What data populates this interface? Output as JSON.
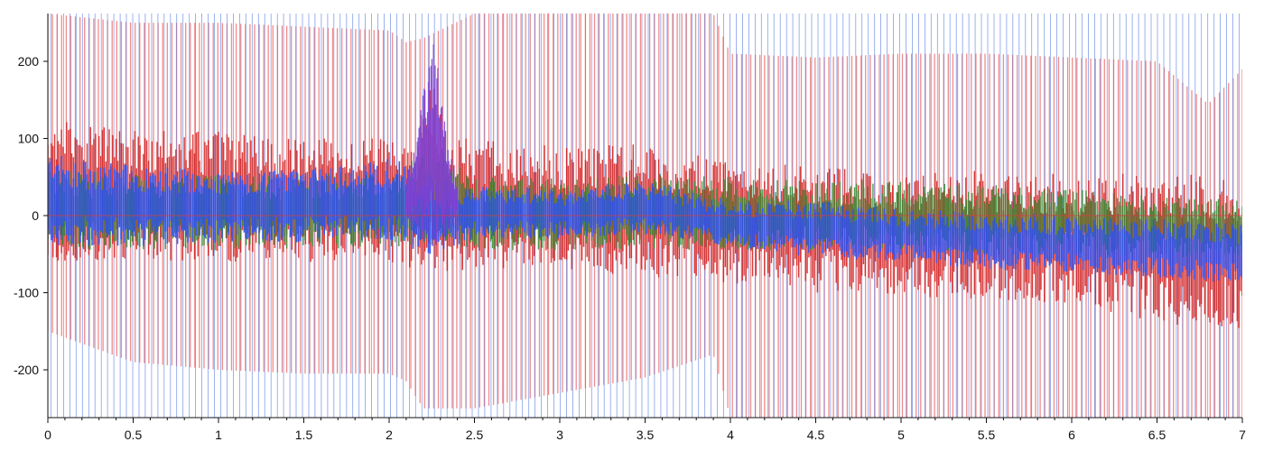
{
  "chart_data": {
    "type": "line",
    "title": "",
    "xlabel": "",
    "ylabel": "",
    "xlim": [
      0,
      7
    ],
    "ylim": [
      -262,
      262
    ],
    "x_ticks": [
      0,
      0.5,
      1,
      1.5,
      2,
      2.5,
      3,
      3.5,
      4,
      4.5,
      5,
      5.5,
      6,
      6.5,
      7
    ],
    "x_tick_labels": [
      "0",
      "0.5",
      "1",
      "1.5",
      "2",
      "2.5",
      "3",
      "3.5",
      "4",
      "4.5",
      "5",
      "5.5",
      "6",
      "6.5",
      "7"
    ],
    "y_ticks": [
      200,
      100,
      0,
      -100,
      -200
    ],
    "y_tick_labels": [
      "200",
      "100",
      "0",
      "-100",
      "-200"
    ],
    "grid": false,
    "zero_line": {
      "color": "#d04040",
      "value": 0
    },
    "colors": {
      "salmon_bursts": "#f08080",
      "blue_spikes": "#5b7fe0",
      "red_envelope": "#d11a1a",
      "green_band": "#2f8a2f",
      "blue_core": "#2f4ff0",
      "purple_highlight": "#8040d0"
    },
    "series": [
      {
        "role": "salmon_bursts",
        "x": [
          0,
          0.5,
          1,
          1.5,
          2,
          2.1,
          2.2,
          2.5,
          3,
          3.5,
          3.9,
          4,
          4.5,
          5,
          5.5,
          6,
          6.5,
          6.8,
          7
        ],
        "upper": [
          262,
          250,
          250,
          245,
          240,
          225,
          230,
          262,
          262,
          262,
          262,
          210,
          205,
          210,
          210,
          205,
          200,
          145,
          190
        ],
        "lower": [
          -150,
          -190,
          -200,
          -205,
          -205,
          -215,
          -250,
          -250,
          -230,
          -210,
          -180,
          -262,
          -262,
          -262,
          -262,
          -262,
          -262,
          -262,
          -262
        ]
      },
      {
        "role": "red_envelope",
        "x": [
          0,
          0.5,
          1,
          1.5,
          2,
          2.05,
          2.15,
          2.25,
          2.35,
          2.5,
          3,
          3.5,
          4,
          4.5,
          5,
          5.5,
          6,
          6.5,
          7
        ],
        "upper": [
          130,
          115,
          110,
          100,
          100,
          95,
          80,
          175,
          110,
          100,
          90,
          95,
          75,
          65,
          60,
          58,
          55,
          55,
          55
        ],
        "lower": [
          -60,
          -60,
          -60,
          -60,
          -60,
          -65,
          -70,
          -70,
          -75,
          -70,
          -70,
          -80,
          -90,
          -100,
          -105,
          -110,
          -115,
          -140,
          -150
        ]
      },
      {
        "role": "green_band",
        "x": [
          0,
          0.5,
          1,
          1.5,
          2,
          2.25,
          2.5,
          3,
          3.5,
          4,
          4.5,
          5,
          5.5,
          6,
          6.5,
          7
        ],
        "upper": [
          60,
          55,
          55,
          55,
          55,
          95,
          50,
          50,
          55,
          50,
          45,
          45,
          40,
          35,
          25,
          20
        ],
        "lower": [
          -45,
          -45,
          -45,
          -45,
          -40,
          -40,
          -45,
          -45,
          -45,
          -45,
          -45,
          -45,
          -50,
          -50,
          -55,
          -55
        ]
      },
      {
        "role": "blue_core",
        "x": [
          0,
          0.5,
          1,
          1.5,
          2,
          2.1,
          2.25,
          2.4,
          2.5,
          3,
          3.5,
          4,
          4.5,
          5,
          5.5,
          6,
          6.5,
          7
        ],
        "upper": [
          80,
          65,
          60,
          60,
          75,
          70,
          55,
          40,
          40,
          35,
          45,
          20,
          20,
          10,
          5,
          0,
          -5,
          -10
        ],
        "lower": [
          -40,
          -40,
          -35,
          -35,
          -35,
          -40,
          -55,
          -40,
          -30,
          -30,
          -25,
          -40,
          -55,
          -60,
          -70,
          -75,
          -80,
          -90
        ]
      },
      {
        "role": "purple_highlight",
        "x": [
          2.1,
          2.15,
          2.2,
          2.25,
          2.3,
          2.35,
          2.4
        ],
        "upper": [
          50,
          90,
          160,
          245,
          170,
          90,
          45
        ],
        "lower": [
          -10,
          -20,
          -35,
          -50,
          -35,
          -20,
          -10
        ]
      },
      {
        "role": "blue_spikes",
        "x_start": 0,
        "x_end": 7,
        "count": 190,
        "upper": 262,
        "lower": -262
      }
    ]
  }
}
